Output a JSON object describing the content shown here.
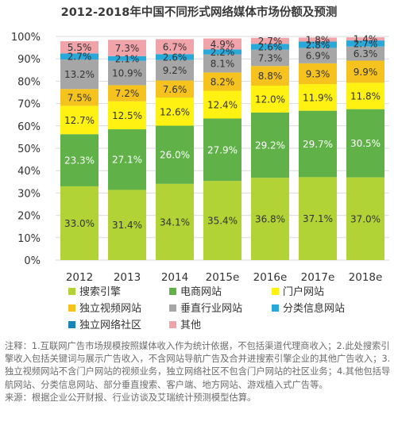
{
  "chart_data": {
    "type": "bar",
    "stacked": true,
    "percent": true,
    "title": "2012-2018年中国不同形式网络媒体市场份额及预测",
    "categories": [
      "2012",
      "2013",
      "2014",
      "2015e",
      "2016e",
      "2017e",
      "2018e"
    ],
    "ylim": [
      0,
      100
    ],
    "y_ticks": [
      "0%",
      "10%",
      "20%",
      "30%",
      "40%",
      "50%",
      "60%",
      "70%",
      "80%",
      "90%",
      "100%"
    ],
    "grid": true,
    "legend_position": "bottom",
    "series": [
      {
        "name": "搜索引擎",
        "color": "#b1d335",
        "values": [
          33.0,
          31.4,
          34.1,
          35.4,
          36.8,
          37.1,
          37.0
        ],
        "labels": [
          "33.0%",
          "31.4%",
          "34.1%",
          "35.4%",
          "36.8%",
          "37.1%",
          "37.0%"
        ]
      },
      {
        "name": "电商网站",
        "color": "#5fb148",
        "values": [
          23.3,
          27.1,
          26.0,
          27.9,
          29.2,
          29.7,
          30.5
        ],
        "labels": [
          "23.3%",
          "27.1%",
          "26.0%",
          "27.9%",
          "29.2%",
          "29.7%",
          "30.5%"
        ]
      },
      {
        "name": "门户网站",
        "color": "#fff112",
        "values": [
          12.7,
          12.5,
          12.6,
          12.4,
          12.0,
          11.9,
          11.8
        ],
        "labels": [
          "12.7%",
          "12.5%",
          "12.6%",
          "12.4%",
          "12.0%",
          "11.9%",
          "11.8%"
        ]
      },
      {
        "name": "独立视频网站",
        "color": "#f6c21d",
        "values": [
          7.5,
          7.2,
          7.6,
          8.2,
          8.8,
          9.3,
          9.9
        ],
        "labels": [
          "7.5%",
          "7.2%",
          "7.6%",
          "8.2%",
          "8.8%",
          "9.3%",
          "9.9%"
        ]
      },
      {
        "name": "垂直行业网站",
        "color": "#a6a6a6",
        "values": [
          13.2,
          10.9,
          9.2,
          8.1,
          7.3,
          6.9,
          6.3
        ],
        "labels": [
          "13.2%",
          "10.9%",
          "9.2%",
          "8.1%",
          "7.3%",
          "6.9%",
          "6.3%"
        ]
      },
      {
        "name": "分类信息网站",
        "color": "#29a8da",
        "values": [
          2.7,
          2.1,
          2.6,
          2.2,
          2.6,
          2.8,
          2.7
        ],
        "labels": [
          "2.7%",
          "2.1%",
          "2.6%",
          "2.2%",
          "2.6%",
          "2.8%",
          "2.7%"
        ]
      },
      {
        "name": "独立网络社区",
        "color": "#1a85bb",
        "values": [
          0,
          0,
          0,
          0,
          0,
          0,
          0
        ],
        "labels": []
      },
      {
        "name": "其他",
        "color": "#f0a3a9",
        "values": [
          5.5,
          7.3,
          6.7,
          4.9,
          2.7,
          1.8,
          1.4
        ],
        "labels": [
          "5.5%",
          "7.3%",
          "6.7%",
          "4.9%",
          "2.7%",
          "1.8%",
          "1.4%"
        ]
      }
    ]
  },
  "notes": {
    "line1": "注释：1.互联网广告市场规模按照媒体收入作为统计依据，不包括渠道代理商收入；2.此处搜索引擎收入包括关键词与展示广告收入，不含网站导航广告及合并进搜索引擎企业的其他广告收入；3.独立视频网站不含门户网站的视频业务，独立网络社区不包含门户网站的社区业务；4.其他包括导航网站、分类信息网站、部分垂直搜索、客户端、地方网站、游戏植入式广告等。",
    "line2": "来源：根据企业公开财报、行业访谈及艾瑞统计预测模型估算。"
  }
}
